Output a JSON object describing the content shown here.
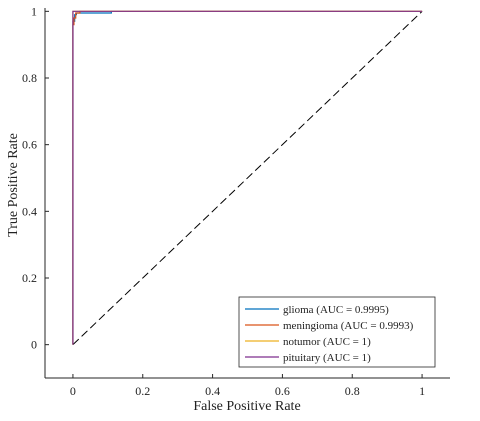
{
  "chart_data": {
    "type": "line",
    "title": "",
    "xlabel": "False Positive Rate",
    "ylabel": "True Positive Rate",
    "xlim": [
      -0.08,
      1.08
    ],
    "ylim": [
      -0.1,
      1.01
    ],
    "xticks": [
      0,
      0.2,
      0.4,
      0.6,
      0.8,
      1
    ],
    "xtick_labels": [
      "0",
      "0.2",
      "0.4",
      "0.6",
      "0.8",
      "1"
    ],
    "yticks": [
      0,
      0.2,
      0.4,
      0.6,
      0.8,
      1
    ],
    "ytick_labels": [
      "0",
      "0.2",
      "0.4",
      "0.6",
      "0.8",
      "1"
    ],
    "grid": false,
    "legend_position": "bottom-right",
    "series": [
      {
        "name": "glioma (AUC = 0.9995)",
        "color": "#0072BD",
        "x": [
          0,
          0,
          0.005,
          0.005,
          0.01,
          0.01,
          0.11,
          0.11,
          1
        ],
        "y": [
          0,
          0.97,
          0.97,
          0.99,
          0.99,
          0.995,
          0.995,
          1,
          1
        ]
      },
      {
        "name": "meningioma (AUC = 0.9993)",
        "color": "#D95319",
        "x": [
          0,
          0,
          0.003,
          0.003,
          0.008,
          0.008,
          0.02,
          0.02,
          1
        ],
        "y": [
          0,
          0.96,
          0.96,
          0.98,
          0.98,
          0.995,
          0.995,
          1,
          1
        ]
      },
      {
        "name": "notumor (AUC = 1)",
        "color": "#EDB120",
        "x": [
          0,
          0,
          1
        ],
        "y": [
          0,
          1,
          1
        ]
      },
      {
        "name": "pituitary (AUC = 1)",
        "color": "#7E2F8E",
        "x": [
          0,
          0,
          1
        ],
        "y": [
          0,
          1,
          1
        ]
      }
    ],
    "reference_line": {
      "x": [
        0,
        1
      ],
      "y": [
        0,
        1
      ],
      "style": "dashed",
      "color": "#000000"
    }
  }
}
